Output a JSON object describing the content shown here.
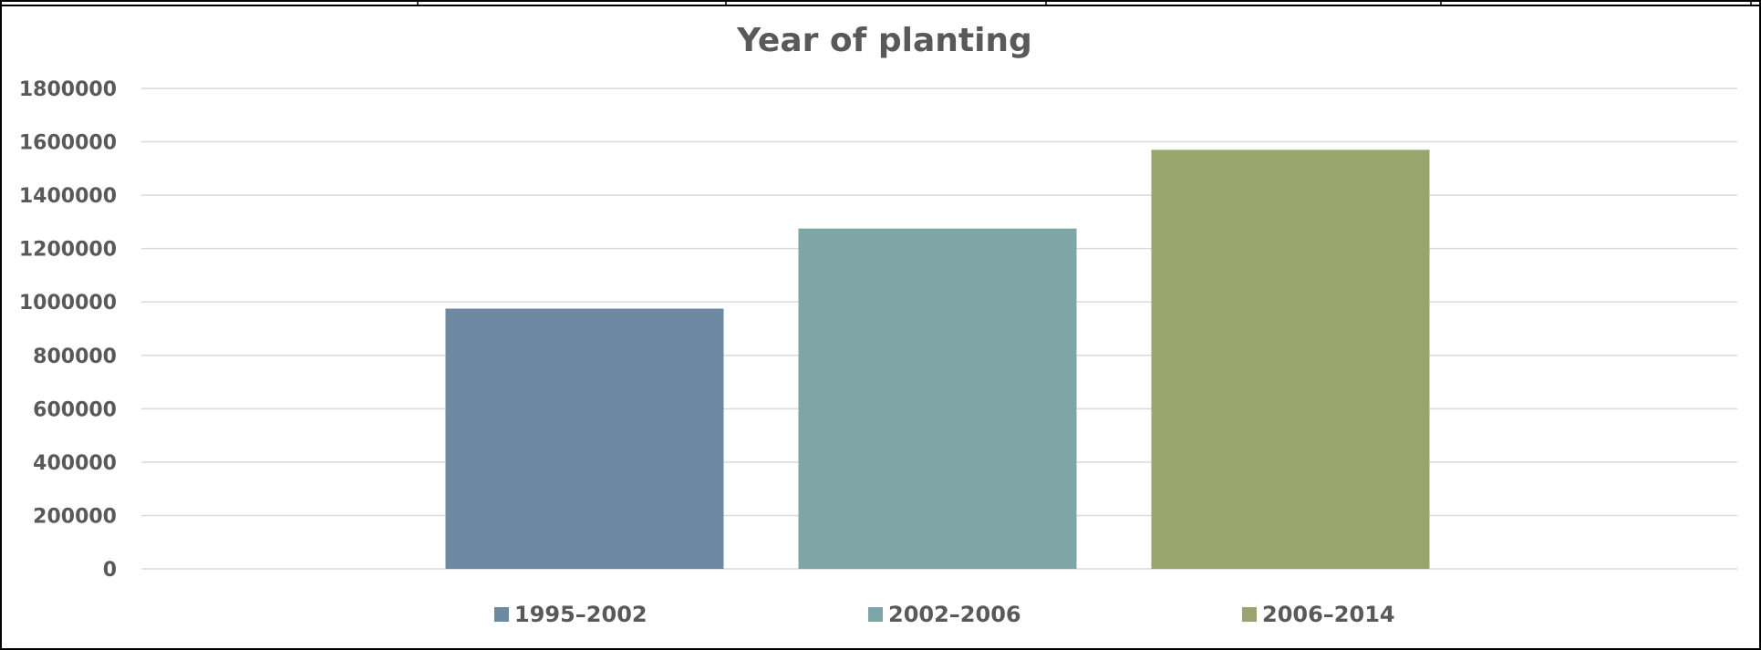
{
  "chart_data": {
    "type": "bar",
    "title": "Year of planting",
    "categories": [
      "1995–2002",
      "2002–2006",
      "2006–2014"
    ],
    "values": [
      975000,
      1275000,
      1570000
    ],
    "ylim": [
      0,
      1800000
    ],
    "yticks": [
      0,
      200000,
      400000,
      600000,
      800000,
      1000000,
      1200000,
      1400000,
      1600000,
      1800000
    ],
    "grid": true,
    "legend_position": "bottom",
    "colors": [
      "#6e8aa2",
      "#7fa6a6",
      "#99a56c"
    ]
  }
}
